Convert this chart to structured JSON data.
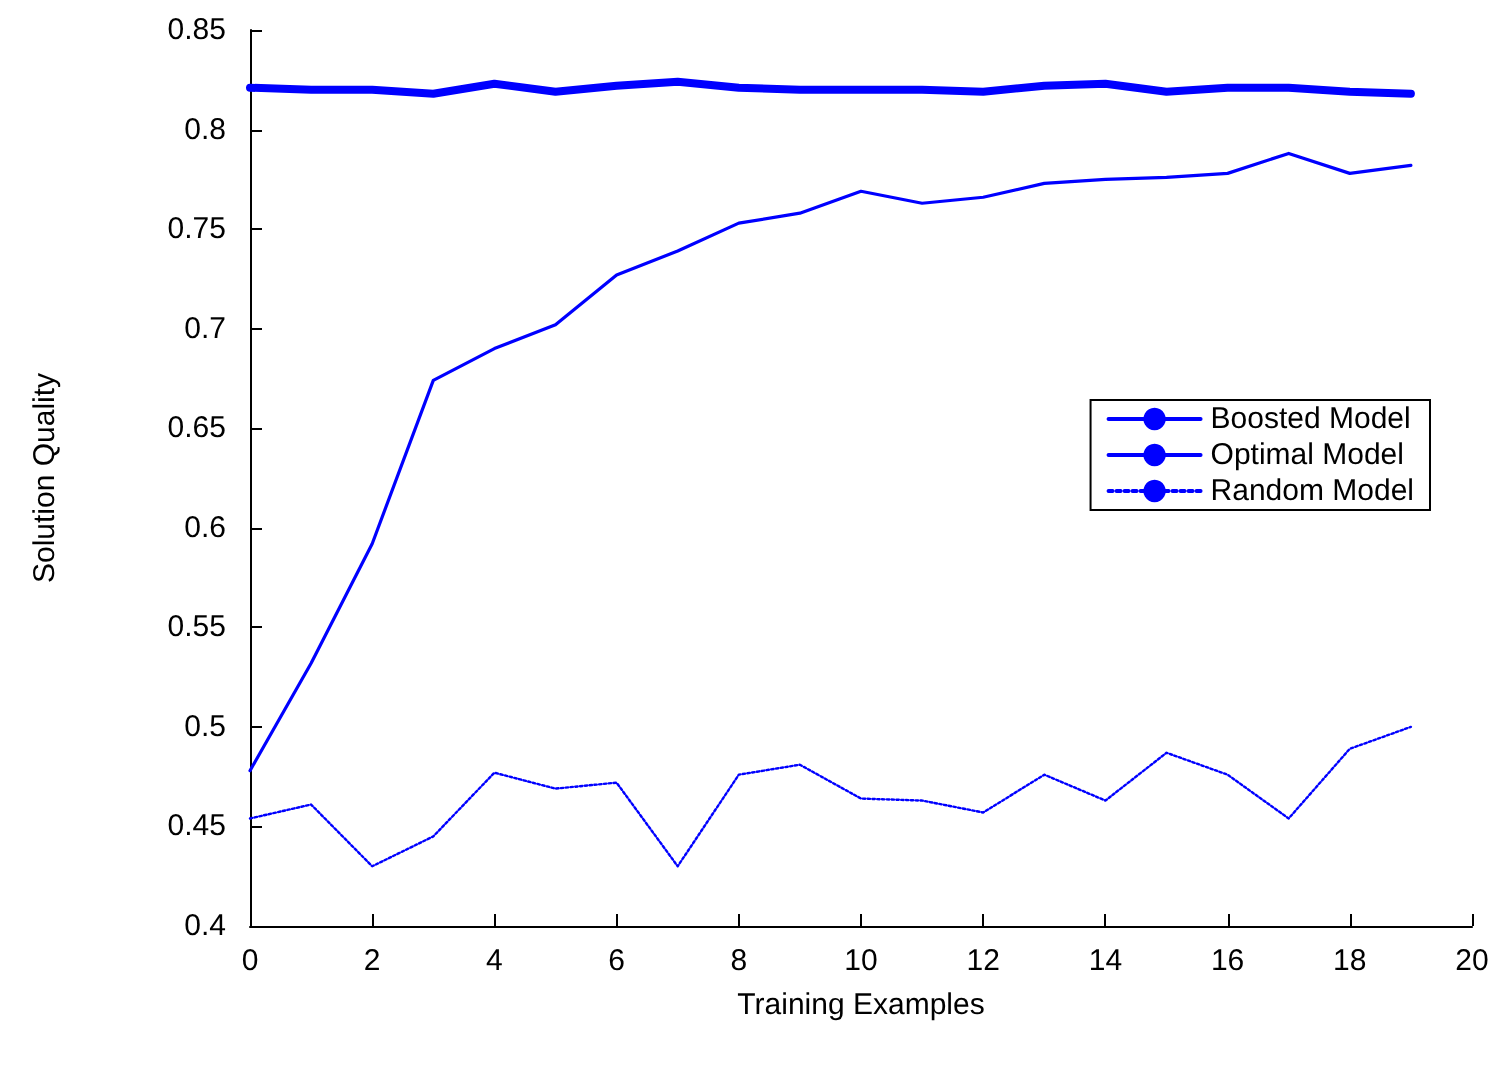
{
  "chart_data": {
    "type": "line",
    "xlabel": "Training Examples",
    "ylabel": "Solution Quality",
    "x": [
      0,
      1,
      2,
      3,
      4,
      5,
      6,
      7,
      8,
      9,
      10,
      11,
      12,
      13,
      14,
      15,
      16,
      17,
      18,
      19
    ],
    "xlim": [
      0,
      20
    ],
    "xticks": [
      0,
      2,
      4,
      6,
      8,
      10,
      12,
      14,
      16,
      18,
      20
    ],
    "ylim": [
      0.4,
      0.85
    ],
    "yticks": [
      0.4,
      0.45,
      0.5,
      0.55,
      0.6,
      0.65,
      0.7,
      0.75,
      0.8,
      0.85
    ],
    "grid": false,
    "legend": "right",
    "marker": "none",
    "series": [
      {
        "name": "Boosted Model",
        "color": "#0000ff",
        "line_style": "solid",
        "values": [
          0.478,
          0.532,
          0.592,
          0.674,
          0.69,
          0.702,
          0.727,
          0.739,
          0.753,
          0.758,
          0.769,
          0.763,
          0.766,
          0.773,
          0.775,
          0.776,
          0.778,
          0.788,
          0.778,
          0.782
        ]
      },
      {
        "name": "Optimal Model",
        "color": "#0000ff",
        "line_style": "solid",
        "values": [
          0.821,
          0.82,
          0.82,
          0.818,
          0.823,
          0.819,
          0.822,
          0.824,
          0.821,
          0.82,
          0.82,
          0.82,
          0.819,
          0.822,
          0.823,
          0.819,
          0.821,
          0.821,
          0.819,
          0.818
        ]
      },
      {
        "name": "Random Model",
        "color": "#0000ff",
        "line_style": "dotted",
        "values": [
          0.454,
          0.461,
          0.43,
          0.445,
          0.477,
          0.469,
          0.472,
          0.43,
          0.476,
          0.481,
          0.464,
          0.463,
          0.457,
          0.476,
          0.463,
          0.487,
          0.476,
          0.454,
          0.489,
          0.5
        ]
      }
    ]
  }
}
